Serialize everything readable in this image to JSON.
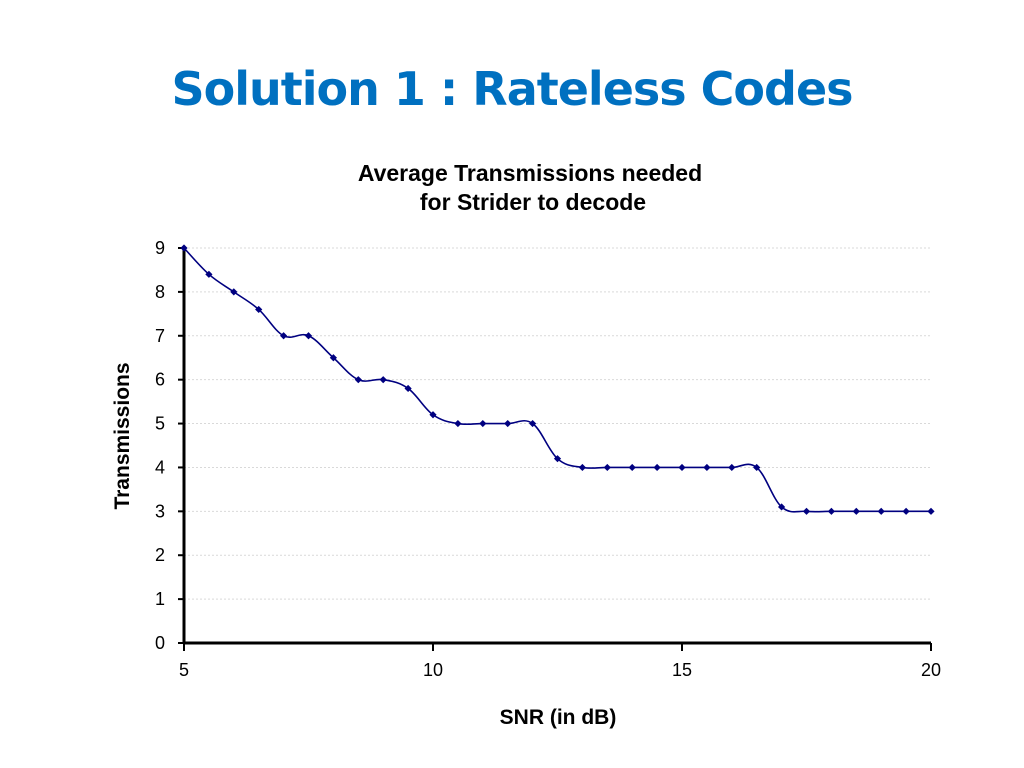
{
  "slide": {
    "title": "Solution 1 : Rateless Codes"
  },
  "chart_data": {
    "type": "line",
    "title_lines": [
      "Average Transmissions needed",
      "for Strider to decode"
    ],
    "xlabel": "SNR (in dB)",
    "ylabel": "Transmissions",
    "xlim": [
      5,
      20
    ],
    "ylim": [
      0,
      9
    ],
    "x_ticks": [
      5,
      10,
      15,
      20
    ],
    "y_ticks": [
      0,
      1,
      2,
      3,
      4,
      5,
      6,
      7,
      8,
      9
    ],
    "grid": true,
    "legend": "none",
    "series": [
      {
        "color": "#000080",
        "x": [
          5,
          5.5,
          6,
          6.5,
          7,
          7.5,
          8,
          8.5,
          9,
          9.5,
          10,
          10.5,
          11,
          11.5,
          12,
          12.5,
          13,
          13.5,
          14,
          14.5,
          15,
          15.5,
          16,
          16.5,
          17,
          17.5,
          18,
          18.5,
          19,
          19.5,
          20
        ],
        "y": [
          9,
          8.4,
          8,
          7.6,
          7,
          7,
          6.5,
          6,
          6,
          5.8,
          5.2,
          5,
          5,
          5,
          5,
          4.2,
          4,
          4,
          4,
          4,
          4,
          4,
          4,
          4,
          3.1,
          3,
          3,
          3,
          3,
          3,
          3
        ]
      }
    ]
  }
}
